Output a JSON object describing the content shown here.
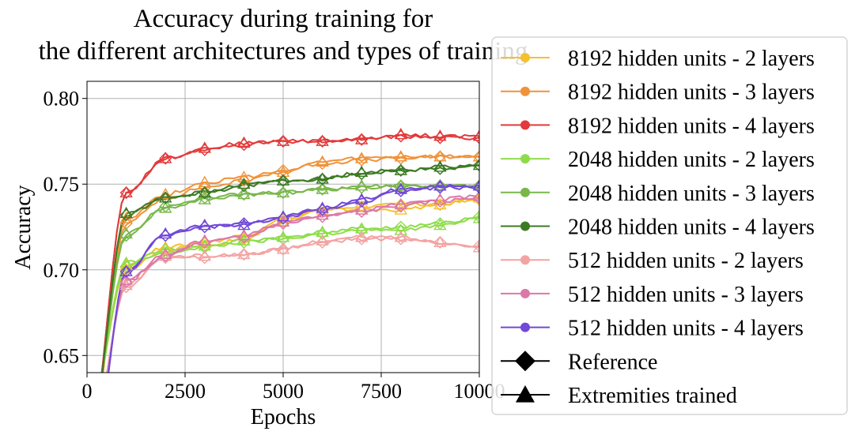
{
  "chart_data": {
    "type": "line",
    "title_lines": [
      "Accuracy during training for",
      "the different architectures and types of training"
    ],
    "xlabel": "Epochs",
    "ylabel": "Accuracy",
    "xlim": [
      0,
      10000
    ],
    "ylim": [
      0.64,
      0.81
    ],
    "xticks": [
      0,
      2500,
      5000,
      7500,
      10000
    ],
    "xtick_labels": [
      "0",
      "2500",
      "5000",
      "7500",
      "10000"
    ],
    "yticks": [
      0.65,
      0.7,
      0.75,
      0.8
    ],
    "ytick_labels": [
      "0.65",
      "0.70",
      "0.75",
      "0.80"
    ],
    "grid": true,
    "legend_position": "right (outside plot area)",
    "marker_epochs": [
      0,
      1000,
      2000,
      3000,
      4000,
      5000,
      6000,
      7000,
      8000,
      9000,
      10000
    ],
    "series": [
      {
        "name": "8192 hidden units - 2 layers",
        "color": "#f5c02c",
        "reference": [
          null,
          0.7,
          0.712,
          0.714,
          0.718,
          0.728,
          0.735,
          0.737,
          0.738,
          0.738,
          0.741
        ],
        "extremities_trained": [
          null,
          0.703,
          0.713,
          0.716,
          0.72,
          0.73,
          0.735,
          0.735,
          0.735,
          0.738,
          0.742
        ]
      },
      {
        "name": "8192 hidden units - 3 layers",
        "color": "#f0923a",
        "reference": [
          null,
          0.727,
          0.742,
          0.748,
          0.752,
          0.758,
          0.762,
          0.764,
          0.765,
          0.766,
          0.766
        ],
        "extremities_trained": [
          null,
          0.73,
          0.744,
          0.751,
          0.754,
          0.757,
          0.763,
          0.765,
          0.766,
          0.766,
          0.766
        ]
      },
      {
        "name": "8192 hidden units - 4 layers",
        "color": "#e23a3a",
        "reference": [
          null,
          0.745,
          0.765,
          0.77,
          0.773,
          0.775,
          0.775,
          0.776,
          0.778,
          0.777,
          0.777
        ],
        "extremities_trained": [
          null,
          0.745,
          0.765,
          0.771,
          0.774,
          0.775,
          0.775,
          0.776,
          0.779,
          0.778,
          0.778
        ]
      },
      {
        "name": "2048 hidden units - 2 layers",
        "color": "#8fdc4b",
        "reference": [
          null,
          0.702,
          0.71,
          0.713,
          0.716,
          0.718,
          0.721,
          0.723,
          0.725,
          0.727,
          0.731
        ],
        "extremities_trained": [
          null,
          0.704,
          0.712,
          0.714,
          0.717,
          0.719,
          0.722,
          0.724,
          0.723,
          0.726,
          0.73
        ]
      },
      {
        "name": "2048 hidden units - 3 layers",
        "color": "#79b74a",
        "reference": [
          null,
          0.72,
          0.737,
          0.742,
          0.744,
          0.745,
          0.747,
          0.748,
          0.749,
          0.749,
          0.749
        ],
        "extremities_trained": [
          null,
          0.721,
          0.736,
          0.741,
          0.744,
          0.745,
          0.747,
          0.749,
          0.749,
          0.749,
          0.749
        ]
      },
      {
        "name": "2048 hidden units - 4 layers",
        "color": "#3c7a23",
        "reference": [
          null,
          0.732,
          0.742,
          0.745,
          0.749,
          0.752,
          0.753,
          0.756,
          0.758,
          0.759,
          0.761
        ],
        "extremities_trained": [
          null,
          0.733,
          0.742,
          0.745,
          0.75,
          0.752,
          0.753,
          0.757,
          0.758,
          0.76,
          0.761
        ]
      },
      {
        "name": "512 hidden units - 2 layers",
        "color": "#f4a3a3",
        "reference": [
          null,
          0.69,
          0.707,
          0.707,
          0.709,
          0.712,
          0.716,
          0.718,
          0.718,
          0.716,
          0.714
        ],
        "extremities_trained": [
          null,
          0.691,
          0.708,
          0.708,
          0.709,
          0.712,
          0.717,
          0.719,
          0.719,
          0.716,
          0.713
        ]
      },
      {
        "name": "512 hidden units - 3 layers",
        "color": "#db78a8",
        "reference": [
          null,
          0.693,
          0.708,
          0.716,
          0.719,
          0.727,
          0.731,
          0.734,
          0.737,
          0.74,
          0.742
        ],
        "extremities_trained": [
          null,
          0.694,
          0.709,
          0.717,
          0.72,
          0.728,
          0.732,
          0.735,
          0.738,
          0.741,
          0.743
        ]
      },
      {
        "name": "512 hidden units - 4 layers",
        "color": "#7148d8",
        "reference": [
          null,
          0.699,
          0.72,
          0.725,
          0.727,
          0.73,
          0.735,
          0.74,
          0.746,
          0.748,
          0.748
        ],
        "extremities_trained": [
          null,
          0.699,
          0.721,
          0.726,
          0.726,
          0.731,
          0.736,
          0.741,
          0.747,
          0.749,
          0.749
        ]
      }
    ],
    "style_legend": [
      {
        "label": "Reference",
        "marker": "diamond"
      },
      {
        "label": "Extremities trained",
        "marker": "triangle"
      }
    ]
  }
}
